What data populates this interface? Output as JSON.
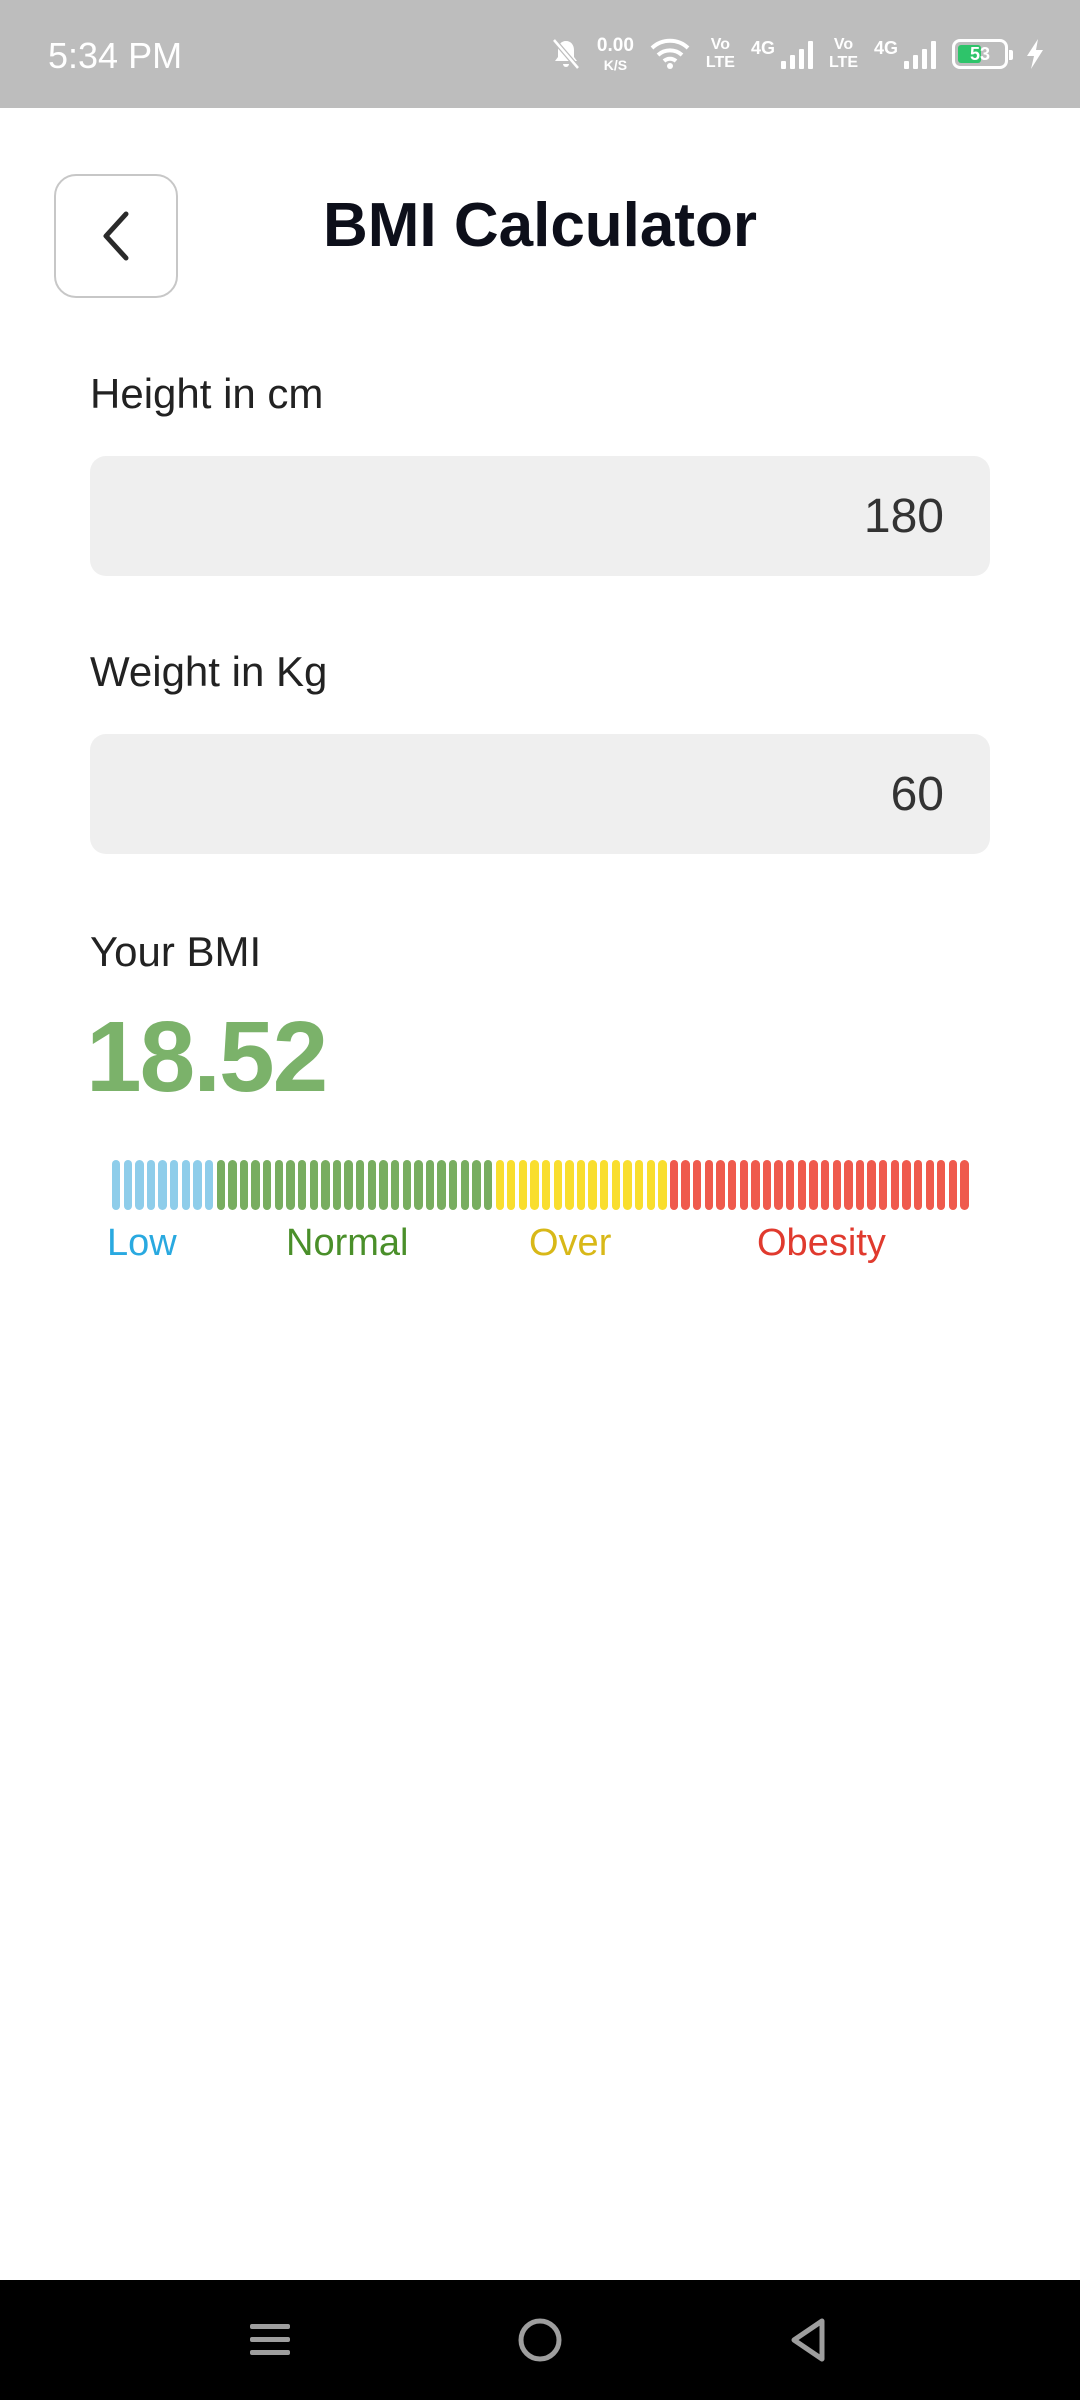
{
  "status_bar": {
    "time": "5:34 PM",
    "net_speed_value": "0.00",
    "net_speed_unit": "K/S",
    "sim1": {
      "volte_top": "Vo",
      "volte_bottom": "LTE",
      "network": "4G"
    },
    "sim2": {
      "volte_top": "Vo",
      "volte_bottom": "LTE",
      "network": "4G"
    },
    "battery_percent": "53",
    "battery_level": 0.53,
    "icons": [
      "bell-muted-icon",
      "wifi-icon",
      "signal-icon",
      "battery-icon",
      "charging-icon"
    ]
  },
  "header": {
    "title": "BMI Calculator",
    "back_icon": "chevron-left-icon"
  },
  "form": {
    "height": {
      "label": "Height in cm",
      "value": "180"
    },
    "weight": {
      "label": "Weight in Kg",
      "value": "60"
    }
  },
  "result": {
    "label": "Your BMI",
    "value": "18.52",
    "value_color": "#7bb26a"
  },
  "gauge": {
    "segments": [
      {
        "category": "low",
        "count": 9,
        "color": "#8ecdea"
      },
      {
        "category": "normal",
        "count": 24,
        "color": "#78ad60"
      },
      {
        "category": "over",
        "count": 15,
        "color": "#f9de2e"
      },
      {
        "category": "obesity",
        "count": 26,
        "color": "#ef5a4d"
      }
    ],
    "labels": [
      {
        "text": "Low",
        "color": "#29a9e0"
      },
      {
        "text": "Normal",
        "color": "#4a8f2a"
      },
      {
        "text": "Over",
        "color": "#d8b818"
      },
      {
        "text": "Obesity",
        "color": "#e03a2e"
      }
    ]
  },
  "nav_bar": {
    "icons": [
      "menu-icon",
      "home-circle-icon",
      "back-triangle-icon"
    ]
  }
}
